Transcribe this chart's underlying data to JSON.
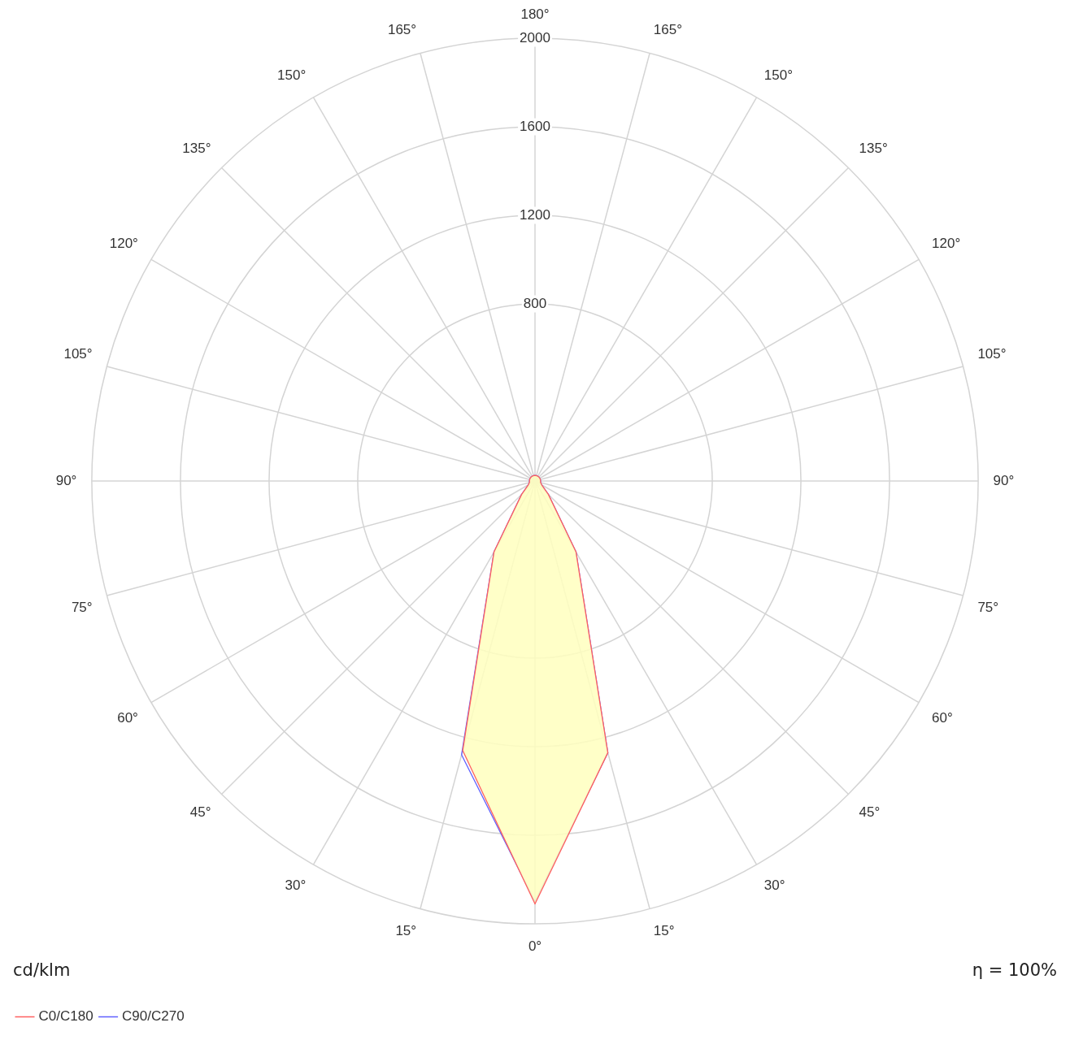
{
  "chart_data": {
    "type": "radar",
    "categories": [
      "180°",
      "165°",
      "150°",
      "135°",
      "120°",
      "105°",
      "90°",
      "75°",
      "60°",
      "45°",
      "30°",
      "15°",
      "0°",
      "15°",
      "30°",
      "45°",
      "60°",
      "75°",
      "90°",
      "105°",
      "120°",
      "135°",
      "150°",
      "165°"
    ],
    "series": [
      {
        "name": "C0/C180",
        "color": "#ff6060",
        "values": [
          25,
          25,
          25,
          25,
          25,
          25,
          25,
          26,
          35,
          85,
          370,
          1270,
          1910,
          1260,
          370,
          85,
          35,
          26,
          25,
          25,
          25,
          25,
          25,
          25
        ]
      },
      {
        "name": "C90/C270",
        "color": "#6060ff",
        "values": [
          25,
          25,
          25,
          25,
          25,
          25,
          25,
          26,
          35,
          85,
          370,
          1270,
          1900,
          1280,
          370,
          85,
          35,
          26,
          25,
          25,
          25,
          25,
          25,
          25
        ]
      }
    ],
    "ylim": [
      0,
      2000
    ],
    "yticks": [
      800,
      1200,
      1600,
      2000
    ],
    "grid": true,
    "marker": "none",
    "line_style": "solid",
    "legend": "bottom left",
    "annotations": [
      "cd/klm",
      "η = 100%"
    ]
  }
}
